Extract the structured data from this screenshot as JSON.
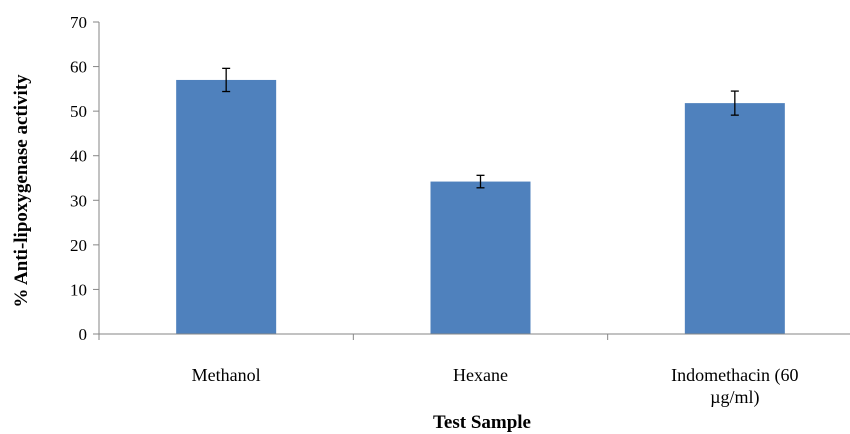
{
  "chart_data": {
    "type": "bar",
    "title": "",
    "xlabel": "Test Sample",
    "ylabel": "% Anti-lipoxygenase  activity",
    "ylim": [
      0,
      70
    ],
    "yticks": [
      0,
      10,
      20,
      30,
      40,
      50,
      60,
      70
    ],
    "grid": false,
    "legend": "none",
    "categories": [
      [
        "Methanol"
      ],
      [
        "Hexane"
      ],
      [
        "Indomethacin (60",
        "µg/ml)"
      ]
    ],
    "series": [
      {
        "values": [
          57.0,
          34.2,
          51.8
        ],
        "errors": [
          2.6,
          1.4,
          2.7
        ]
      }
    ],
    "colors": {
      "bar": "#4f81bd",
      "axis": "#868686",
      "error_bar": "#000000"
    }
  }
}
